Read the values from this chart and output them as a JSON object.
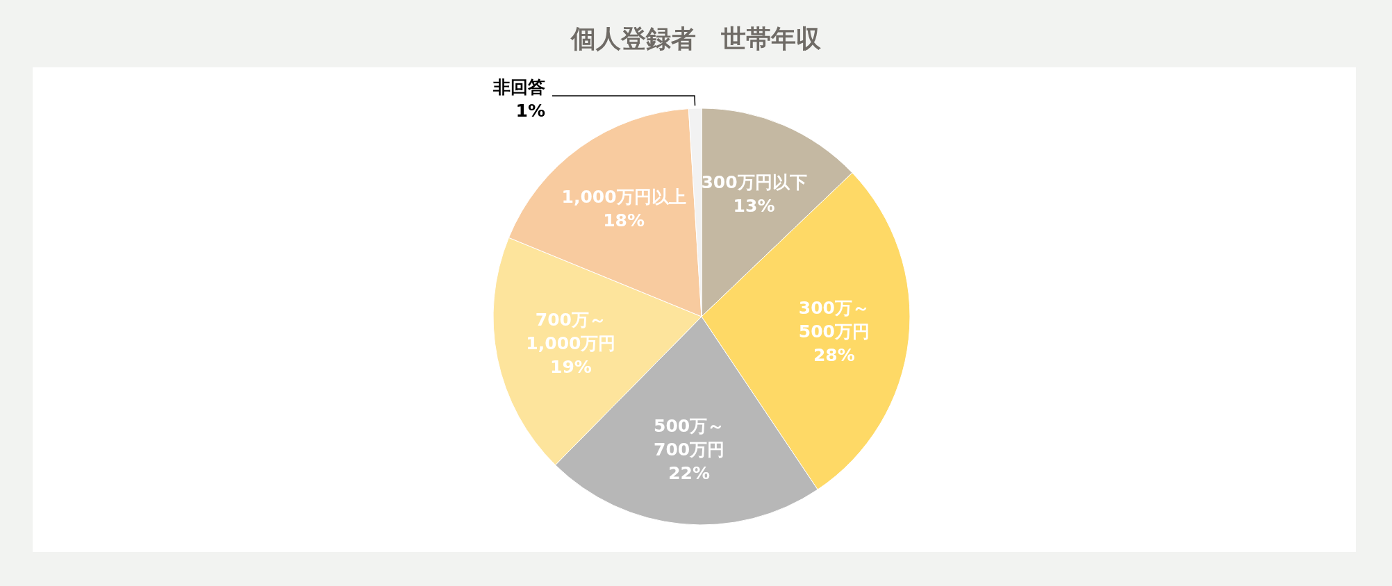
{
  "chart_data": {
    "type": "pie",
    "title": "個人登録者　世帯年収",
    "categories": [
      "300万円以下",
      "300万～\n500万円",
      "500万～\n700万円",
      "700万～\n1,000万円",
      "1,000万円以上",
      "非回答"
    ],
    "values": [
      13,
      28,
      22,
      19,
      18,
      1
    ],
    "value_labels": [
      "13%",
      "28%",
      "22%",
      "19%",
      "18%",
      "1%"
    ],
    "colors": [
      "#c4b8a2",
      "#fed966",
      "#b7b7b7",
      "#fde49c",
      "#f8cb9f",
      "#f2f2f2"
    ]
  }
}
